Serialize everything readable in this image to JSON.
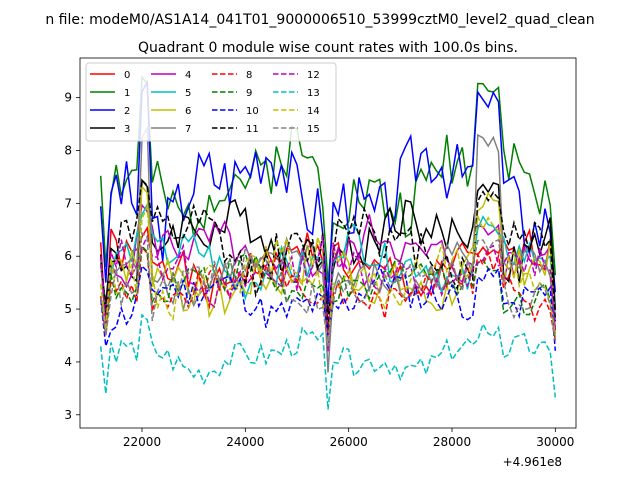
{
  "chart_data": {
    "type": "line",
    "suptitle": "n file: modeM0/AS1A14_041T01_9000006510_53999cztM0_level2_quad_clean",
    "title": "Quadrant 0 module wise count rates with 100.0s bins.",
    "xlabel": "",
    "ylabel": "",
    "x_offset_label": "+4.961e8",
    "xlim": [
      20800,
      30400
    ],
    "ylim": [
      2.75,
      9.75
    ],
    "x_ticks": [
      22000,
      24000,
      26000,
      28000,
      30000
    ],
    "x_tick_labels": [
      "22000",
      "24000",
      "26000",
      "28000",
      "30000"
    ],
    "y_ticks": [
      3,
      4,
      5,
      6,
      7,
      8,
      9
    ],
    "y_tick_labels": [
      "3",
      "4",
      "5",
      "6",
      "7",
      "8",
      "9"
    ],
    "grid": false,
    "legend_position": "top-left",
    "x_start": 21200,
    "x_step": 100,
    "x_count": 89,
    "gap_index": 44,
    "series": [
      {
        "name": "0",
        "color": "#ff0000",
        "style": "solid",
        "base": 5.8,
        "amp": 0.55,
        "seed": 1,
        "peak": 6.6,
        "gap": 4.4
      },
      {
        "name": "1",
        "color": "#008000",
        "style": "solid",
        "base": 7.4,
        "amp": 0.8,
        "seed": 2,
        "peak": 9.5,
        "gap": 5.5
      },
      {
        "name": "2",
        "color": "#0000ff",
        "style": "solid",
        "base": 7.3,
        "amp": 0.9,
        "seed": 3,
        "peak": 9.4,
        "gap": 5.1
      },
      {
        "name": "3",
        "color": "#000000",
        "style": "solid",
        "base": 6.3,
        "amp": 0.6,
        "seed": 4,
        "peak": 7.6,
        "gap": 4.9
      },
      {
        "name": "4",
        "color": "#bf00bf",
        "style": "solid",
        "base": 6.0,
        "amp": 0.55,
        "seed": 5,
        "peak": 7.0,
        "gap": 4.4
      },
      {
        "name": "5",
        "color": "#00bfbf",
        "style": "solid",
        "base": 5.9,
        "amp": 0.5,
        "seed": 6,
        "peak": 7.0,
        "gap": 4.5
      },
      {
        "name": "6",
        "color": "#bfbf00",
        "style": "solid",
        "base": 5.6,
        "amp": 0.55,
        "seed": 7,
        "peak": 7.4,
        "gap": 4.5
      },
      {
        "name": "7",
        "color": "#808080",
        "style": "solid",
        "base": 5.7,
        "amp": 0.5,
        "seed": 8,
        "peak": 8.5,
        "gap": 3.8
      },
      {
        "name": "8",
        "color": "#ff0000",
        "style": "dashed",
        "base": 5.4,
        "amp": 0.45,
        "seed": 9,
        "peak": 6.3,
        "gap": 4.6
      },
      {
        "name": "9",
        "color": "#008000",
        "style": "dashed",
        "base": 5.5,
        "amp": 0.45,
        "seed": 10,
        "peak": 6.2,
        "gap": 4.6
      },
      {
        "name": "10",
        "color": "#0000ff",
        "style": "dashed",
        "base": 5.2,
        "amp": 0.45,
        "seed": 11,
        "peak": 6.0,
        "gap": 4.5
      },
      {
        "name": "11",
        "color": "#000000",
        "style": "dashed",
        "base": 6.2,
        "amp": 0.65,
        "seed": 12,
        "peak": 7.5,
        "gap": 4.6
      },
      {
        "name": "12",
        "color": "#bf00bf",
        "style": "dashed",
        "base": 5.7,
        "amp": 0.5,
        "seed": 13,
        "peak": 6.4,
        "gap": 4.2
      },
      {
        "name": "13",
        "color": "#00bfbf",
        "style": "dashed",
        "base": 4.1,
        "amp": 0.35,
        "seed": 14,
        "peak": 5.0,
        "gap": 3.1
      },
      {
        "name": "14",
        "color": "#bfbf00",
        "style": "dashed",
        "base": 5.6,
        "amp": 0.5,
        "seed": 15,
        "peak": 7.0,
        "gap": 4.3
      },
      {
        "name": "15",
        "color": "#808080",
        "style": "dashed",
        "base": 5.5,
        "amp": 0.5,
        "seed": 16,
        "peak": 6.6,
        "gap": 4.3
      }
    ]
  }
}
